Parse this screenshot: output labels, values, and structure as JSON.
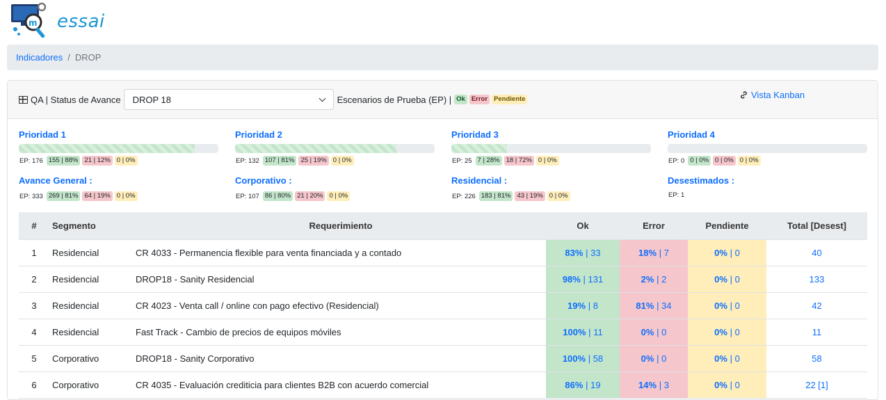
{
  "app": {
    "logo_text": "essai"
  },
  "breadcrumb": {
    "items": [
      "Indicadores",
      "DROP"
    ]
  },
  "header": {
    "title": "QA | Status de Avance",
    "selected_drop": "DROP 18",
    "ep_label": "Escenarios de Prueba (EP) |",
    "legend": {
      "ok": "Ok",
      "error": "Error",
      "pending": "Pendiente"
    },
    "kanban_link": "Vista Kanban"
  },
  "priorities": [
    {
      "title": "Prioridad 1",
      "fill": 0.88,
      "ep": "EP: 176",
      "ok": "155 | 88%",
      "err": "21 | 12%",
      "pend": "0 | 0%"
    },
    {
      "title": "Prioridad 2",
      "fill": 0.81,
      "ep": "EP: 132",
      "ok": "107 | 81%",
      "err": "25 | 19%",
      "pend": "0 | 0%"
    },
    {
      "title": "Prioridad 3",
      "fill": 0.28,
      "ep": "EP: 25",
      "ok": "7 | 28%",
      "err": "18 | 72%",
      "pend": "0 | 0%"
    },
    {
      "title": "Prioridad 4",
      "fill": 0,
      "ep": "EP: 0",
      "ok": "0 | 0%",
      "err": "0 | 0%",
      "pend": "0 | 0%"
    }
  ],
  "summaries": [
    {
      "title": "Avance General :",
      "ep": "EP: 333",
      "ok": "269 | 81%",
      "err": "64 | 19%",
      "pend": "0 | 0%"
    },
    {
      "title": "Corporativo :",
      "ep": "EP: 107",
      "ok": "86 | 80%",
      "err": "21 | 20%",
      "pend": "0 | 0%"
    },
    {
      "title": "Residencial :",
      "ep": "EP: 226",
      "ok": "183 | 81%",
      "err": "43 | 19%",
      "pend": "0 | 0%"
    },
    {
      "title": "Desestimados :",
      "ep": "EP: 1"
    }
  ],
  "table": {
    "headers": [
      "#",
      "Segmento",
      "Requerimiento",
      "Ok",
      "Error",
      "Pendiente",
      "Total [Desest]"
    ],
    "rows": [
      {
        "n": "1",
        "seg": "Residencial",
        "req": "CR 4033 - Permanencia flexible para venta financiada y a contado",
        "ok_pct": "83%",
        "ok_cnt": "33",
        "err_pct": "18%",
        "err_cnt": "7",
        "pend_pct": "0%",
        "pend_cnt": "0",
        "total": "40"
      },
      {
        "n": "2",
        "seg": "Residencial",
        "req": "DROP18 - Sanity Residencial",
        "ok_pct": "98%",
        "ok_cnt": "131",
        "err_pct": "2%",
        "err_cnt": "2",
        "pend_pct": "0%",
        "pend_cnt": "0",
        "total": "133"
      },
      {
        "n": "3",
        "seg": "Residencial",
        "req": "CR 4023 - Venta call / online con pago efectivo (Residencial)",
        "ok_pct": "19%",
        "ok_cnt": "8",
        "err_pct": "81%",
        "err_cnt": "34",
        "pend_pct": "0%",
        "pend_cnt": "0",
        "total": "42"
      },
      {
        "n": "4",
        "seg": "Residencial",
        "req": "Fast Track - Cambio de precios de equipos móviles",
        "ok_pct": "100%",
        "ok_cnt": "11",
        "err_pct": "0%",
        "err_cnt": "0",
        "pend_pct": "0%",
        "pend_cnt": "0",
        "total": "11"
      },
      {
        "n": "5",
        "seg": "Corporativo",
        "req": "DROP18 - Sanity Corporativo",
        "ok_pct": "100%",
        "ok_cnt": "58",
        "err_pct": "0%",
        "err_cnt": "0",
        "pend_pct": "0%",
        "pend_cnt": "0",
        "total": "58"
      },
      {
        "n": "6",
        "seg": "Corporativo",
        "req": "CR 4035 - Evaluación crediticia para clientes B2B con acuerdo comercial",
        "ok_pct": "86%",
        "ok_cnt": "19",
        "err_pct": "14%",
        "err_cnt": "3",
        "pend_pct": "0%",
        "pend_cnt": "0",
        "total": "22 [1]"
      }
    ]
  }
}
